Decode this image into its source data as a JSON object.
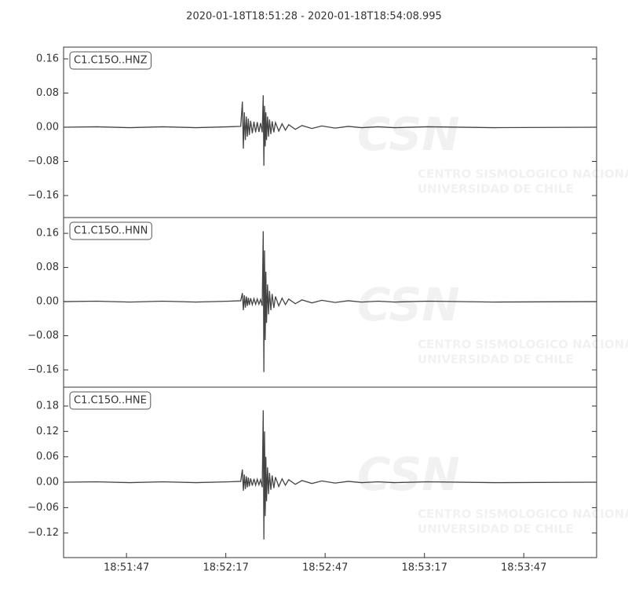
{
  "title": "2020-01-18T18:51:28  -  2020-01-18T18:54:08.995",
  "watermark": {
    "logo": "CSN",
    "text": "CENTRO SISMOLOGICO NACIONAL",
    "subtext": "UNIVERSIDAD DE CHILE"
  },
  "chart_data": [
    {
      "type": "line",
      "x": [
        0,
        10,
        20,
        30,
        40,
        50,
        53.5,
        54,
        54.3,
        54.6,
        54.9,
        55.2,
        55.5,
        55.8,
        56.1,
        56.5,
        57,
        57.5,
        58,
        58.5,
        59,
        59.5,
        60,
        60.3,
        60.5,
        60.7,
        60.9,
        61.1,
        61.3,
        61.6,
        61.9,
        62.2,
        62.6,
        63,
        63.5,
        64,
        65,
        66,
        67,
        68,
        70,
        72,
        75,
        78,
        82,
        86,
        90,
        95,
        100,
        110,
        130,
        160.995
      ],
      "series": [
        {
          "name": "C1.C15O..HNZ",
          "color": "#444444",
          "values": [
            0,
            0.001,
            -0.001,
            0.001,
            -0.001,
            0.001,
            0.002,
            0.06,
            -0.05,
            0.035,
            -0.03,
            0.025,
            -0.022,
            0.02,
            -0.018,
            0.015,
            -0.014,
            0.013,
            -0.012,
            0.012,
            -0.011,
            0.01,
            -0.012,
            0.075,
            -0.09,
            0.05,
            -0.045,
            0.035,
            -0.03,
            0.025,
            -0.022,
            0.018,
            -0.016,
            0.014,
            -0.012,
            0.011,
            -0.009,
            0.008,
            -0.007,
            0.006,
            -0.005,
            0.004,
            -0.003,
            0.003,
            -0.002,
            0.002,
            -0.001,
            0.001,
            -0.001,
            0.001,
            -0.001,
            0
          ]
        }
      ],
      "xlim": [
        0,
        160.995
      ],
      "ylim": [
        -0.2115,
        0.1876
      ],
      "yticks": [
        0.16,
        0.08,
        {
          "value": 0,
          "label": "0.00"
        },
        {
          "value": -0.08,
          "label": "−0.08"
        },
        {
          "value": -0.16,
          "label": "−0.16"
        }
      ]
    },
    {
      "type": "line",
      "x": [
        0,
        10,
        20,
        30,
        40,
        50,
        53.5,
        54,
        54.3,
        54.6,
        54.9,
        55.2,
        55.5,
        55.8,
        56.1,
        56.5,
        57,
        57.5,
        58,
        58.5,
        59,
        59.5,
        60,
        60.3,
        60.5,
        60.7,
        60.9,
        61.1,
        61.3,
        61.6,
        61.9,
        62.2,
        62.6,
        63,
        63.5,
        64,
        65,
        66,
        67,
        68,
        70,
        72,
        75,
        78,
        82,
        86,
        90,
        95,
        100,
        110,
        130,
        160.995
      ],
      "series": [
        {
          "name": "C1.C15O..HNN",
          "color": "#444444",
          "values": [
            0,
            0.001,
            -0.001,
            0.001,
            -0.001,
            0.001,
            0.002,
            0.02,
            -0.02,
            0.015,
            -0.014,
            0.012,
            -0.01,
            0.009,
            -0.008,
            0.008,
            -0.007,
            0.007,
            -0.006,
            0.006,
            -0.006,
            0.005,
            -0.01,
            0.165,
            -0.165,
            0.12,
            -0.09,
            0.07,
            -0.05,
            0.04,
            -0.03,
            0.025,
            -0.02,
            0.018,
            -0.015,
            0.012,
            -0.01,
            0.008,
            -0.007,
            0.006,
            -0.005,
            0.004,
            -0.003,
            0.003,
            -0.002,
            0.002,
            -0.001,
            0.001,
            -0.001,
            0.001,
            -0.001,
            0
          ]
        }
      ],
      "xlim": [
        0,
        160.995
      ],
      "ylim": [
        -0.2005,
        0.197
      ],
      "yticks": [
        0.16,
        0.08,
        {
          "value": 0,
          "label": "0.00"
        },
        {
          "value": -0.08,
          "label": "−0.08"
        },
        {
          "value": -0.16,
          "label": "−0.16"
        }
      ]
    },
    {
      "type": "line",
      "x": [
        0,
        10,
        20,
        30,
        40,
        50,
        53.5,
        54,
        54.3,
        54.6,
        54.9,
        55.2,
        55.5,
        55.8,
        56.1,
        56.5,
        57,
        57.5,
        58,
        58.5,
        59,
        59.5,
        60,
        60.3,
        60.5,
        60.7,
        60.9,
        61.1,
        61.3,
        61.6,
        61.9,
        62.2,
        62.6,
        63,
        63.5,
        64,
        65,
        66,
        67,
        68,
        70,
        72,
        75,
        78,
        82,
        86,
        90,
        95,
        100,
        110,
        130,
        160.995
      ],
      "series": [
        {
          "name": "C1.C15O..HNE",
          "color": "#444444",
          "values": [
            0,
            0.001,
            -0.001,
            0.001,
            -0.001,
            0.001,
            0.002,
            0.03,
            -0.02,
            0.018,
            -0.016,
            0.014,
            -0.012,
            0.011,
            -0.01,
            0.009,
            -0.008,
            0.008,
            -0.007,
            0.007,
            -0.006,
            0.006,
            -0.012,
            0.17,
            -0.135,
            0.12,
            -0.08,
            0.06,
            -0.045,
            0.035,
            -0.028,
            0.022,
            -0.018,
            0.016,
            -0.014,
            0.012,
            -0.01,
            0.008,
            -0.007,
            0.006,
            -0.005,
            0.004,
            -0.003,
            0.003,
            -0.002,
            0.002,
            -0.001,
            0.001,
            -0.001,
            0.001,
            -0.001,
            0
          ]
        }
      ],
      "xlim": [
        0,
        160.995
      ],
      "ylim": [
        -0.178,
        0.2245
      ],
      "yticks": [
        0.18,
        0.12,
        0.06,
        {
          "value": 0,
          "label": "0.00"
        },
        {
          "value": -0.06,
          "label": "−0.06"
        },
        {
          "value": -0.12,
          "label": "−0.12"
        }
      ],
      "xticks": [
        {
          "value": 19,
          "label": "18:51:47"
        },
        {
          "value": 49,
          "label": "18:52:17"
        },
        {
          "value": 79,
          "label": "18:52:47"
        },
        {
          "value": 109,
          "label": "18:53:17"
        },
        {
          "value": 139,
          "label": "18:53:47"
        }
      ]
    }
  ]
}
